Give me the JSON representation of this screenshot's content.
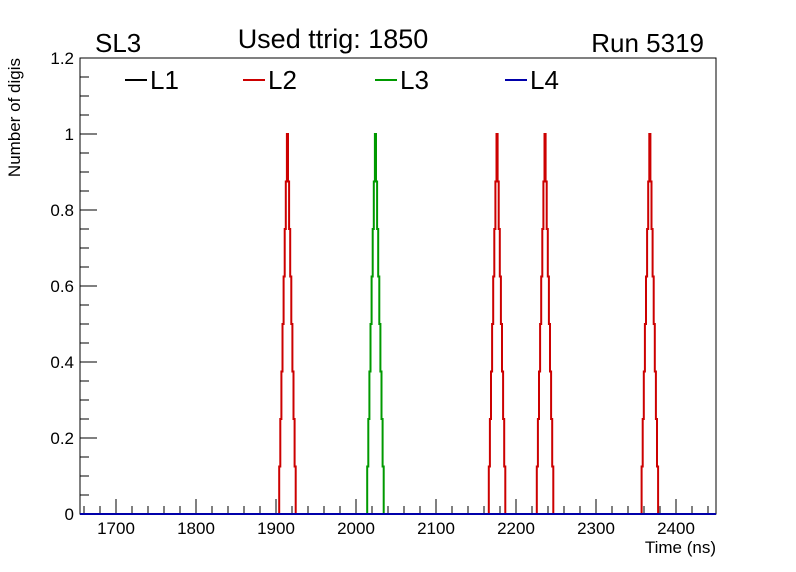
{
  "chart_data": {
    "type": "line",
    "title": "Used ttrig: 1850",
    "top_left_label": "SL3",
    "top_right_label": "Run 5319",
    "xlabel": "Time (ns)",
    "ylabel": "Number of digis",
    "xlim": [
      1655,
      2450
    ],
    "ylim": [
      0,
      1.2
    ],
    "x_ticks": [
      1700,
      1800,
      1900,
      2000,
      2100,
      2200,
      2300,
      2400
    ],
    "x_tick_labels": [
      "1700",
      "1800",
      "1900",
      "2000",
      "2100",
      "2200",
      "2300",
      "2400"
    ],
    "y_ticks": [
      0,
      0.2,
      0.4,
      0.6,
      0.8,
      1,
      1.2
    ],
    "y_tick_labels": [
      "0",
      "0.2",
      "0.4",
      "0.6",
      "0.8",
      "1",
      "1.2"
    ],
    "grid": false,
    "legend_position": "top",
    "series": [
      {
        "name": "L1",
        "color": "#000000",
        "peaks": []
      },
      {
        "name": "L2",
        "color": "#cc0000",
        "peaks": [
          1915,
          2177,
          2237,
          2368
        ]
      },
      {
        "name": "L3",
        "color": "#009900",
        "peaks": [
          2025
        ]
      },
      {
        "name": "L4",
        "color": "#0000aa",
        "peaks": []
      }
    ],
    "peak_height": 1,
    "peak_half_width_ns": 11
  }
}
